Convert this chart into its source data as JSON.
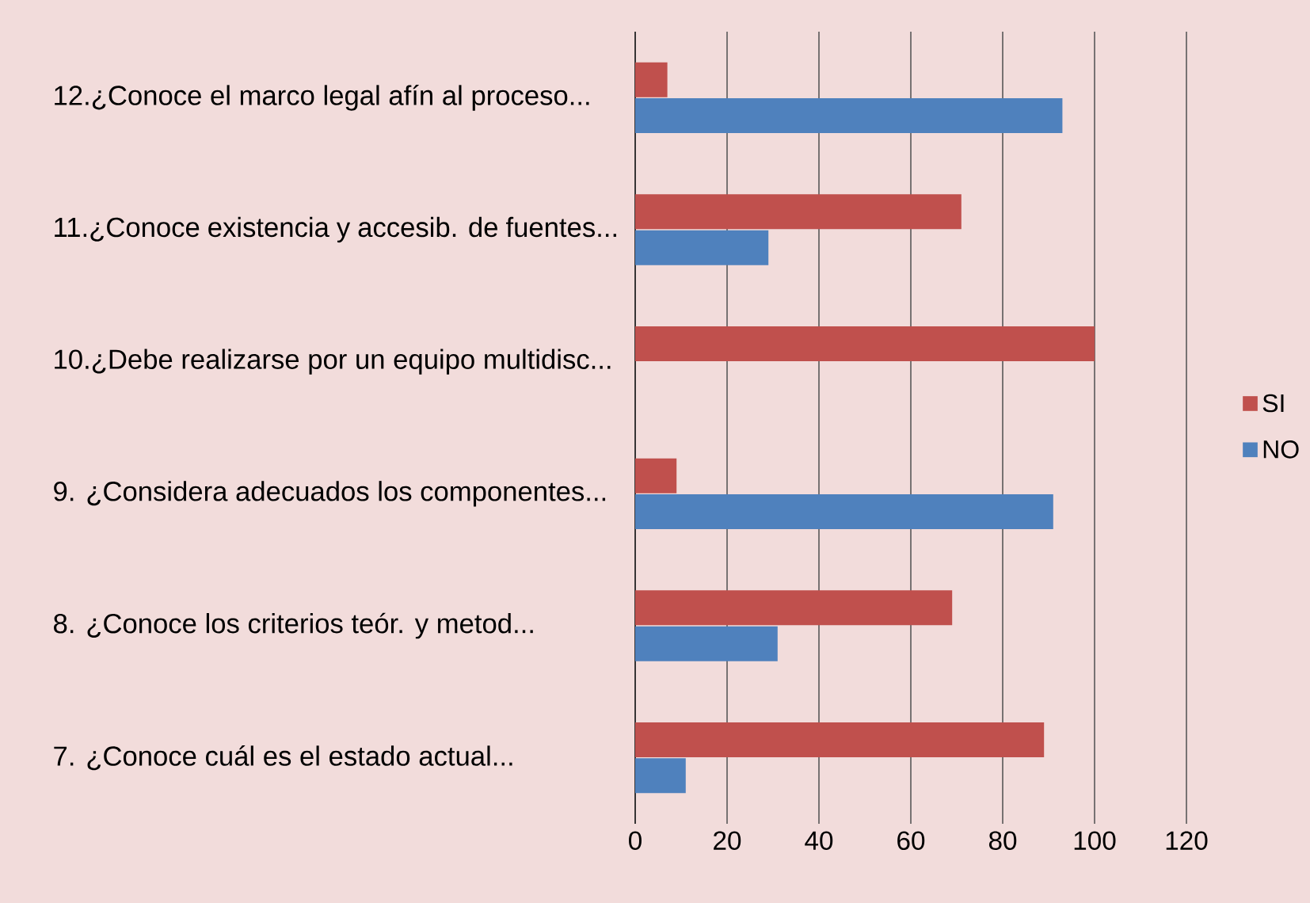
{
  "chart_data": {
    "type": "bar",
    "orientation": "horizontal",
    "categories": [
      "12.¿Conoce el marco legal afín al proceso...",
      "11.¿Conoce existencia y accesib. de fuentes...",
      "10.¿Debe realizarse por un equipo multidisc...",
      "9. ¿Considera adecuados los componentes...",
      "8. ¿Conoce los criterios teór. y metod...",
      "7. ¿Conoce cuál es el estado actual..."
    ],
    "series": [
      {
        "name": "SI",
        "color": "#c0504d",
        "values": [
          7,
          71,
          100,
          9,
          69,
          89
        ]
      },
      {
        "name": "NO",
        "color": "#4f81bd",
        "values": [
          93,
          29,
          0,
          91,
          31,
          11
        ]
      }
    ],
    "xlim": [
      0,
      120
    ],
    "xticks": [
      0,
      20,
      40,
      60,
      80,
      100,
      120
    ],
    "grid": "x",
    "legend": "right"
  }
}
